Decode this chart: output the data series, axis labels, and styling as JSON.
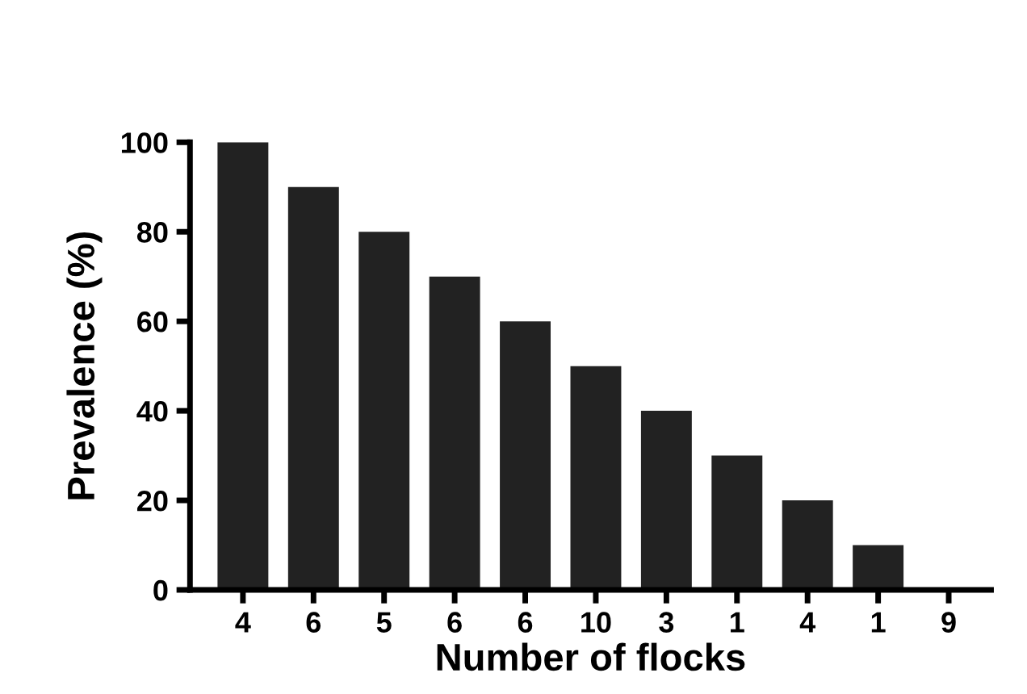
{
  "chart_data": {
    "type": "bar",
    "xlabel": "Number of flocks",
    "ylabel": "Prevalence (%)",
    "categories": [
      "4",
      "6",
      "5",
      "6",
      "6",
      "10",
      "3",
      "1",
      "4",
      "1",
      "9"
    ],
    "values": [
      100,
      90,
      80,
      70,
      60,
      50,
      40,
      30,
      20,
      10,
      0
    ],
    "color": "#222222",
    "ylim": [
      0,
      100
    ],
    "yticks": [
      0,
      20,
      40,
      60,
      80,
      100
    ],
    "grid": false,
    "legend": false
  }
}
